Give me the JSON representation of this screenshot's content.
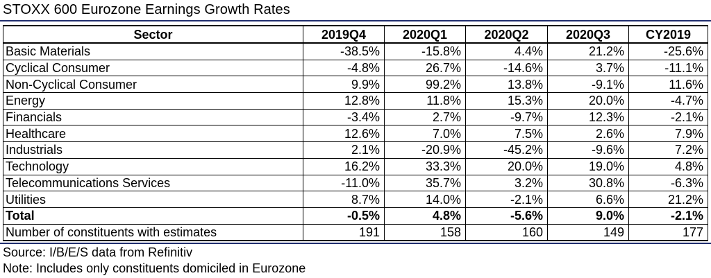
{
  "title": "STOXX 600 Eurozone Earnings Growth Rates",
  "table": {
    "headers": [
      "Sector",
      "2019Q4",
      "2020Q1",
      "2020Q2",
      "2020Q3",
      "CY2019"
    ],
    "rows": [
      {
        "sector": "Basic Materials",
        "values": [
          "-38.5%",
          "-15.8%",
          "4.4%",
          "21.2%",
          "-25.6%"
        ]
      },
      {
        "sector": "Cyclical Consumer",
        "values": [
          "-4.8%",
          "26.7%",
          "-14.6%",
          "3.7%",
          "-11.1%"
        ]
      },
      {
        "sector": "Non-Cyclical Consumer",
        "values": [
          "9.9%",
          "99.2%",
          "13.8%",
          "-9.1%",
          "11.6%"
        ]
      },
      {
        "sector": "Energy",
        "values": [
          "12.8%",
          "11.8%",
          "15.3%",
          "20.0%",
          "-4.7%"
        ]
      },
      {
        "sector": "Financials",
        "values": [
          "-3.4%",
          "2.7%",
          "-9.7%",
          "12.3%",
          "-2.1%"
        ]
      },
      {
        "sector": "Healthcare",
        "values": [
          "12.6%",
          "7.0%",
          "7.5%",
          "2.6%",
          "7.9%"
        ]
      },
      {
        "sector": "Industrials",
        "values": [
          "2.1%",
          "-20.9%",
          "-45.2%",
          "-9.6%",
          "7.2%"
        ]
      },
      {
        "sector": "Technology",
        "values": [
          "16.2%",
          "33.3%",
          "20.0%",
          "19.0%",
          "4.8%"
        ]
      },
      {
        "sector": "Telecommunications Services",
        "values": [
          "-11.0%",
          "35.7%",
          "3.2%",
          "30.8%",
          "-6.3%"
        ]
      },
      {
        "sector": "Utilities",
        "values": [
          "8.7%",
          "14.0%",
          "-2.1%",
          "6.6%",
          "21.2%"
        ]
      },
      {
        "sector": "Total",
        "values": [
          "-0.5%",
          "4.8%",
          "-5.6%",
          "9.0%",
          "-2.1%"
        ]
      },
      {
        "sector": "Number of constituents with estimates",
        "values": [
          "191",
          "158",
          "160",
          "149",
          "177"
        ]
      }
    ]
  },
  "footer": {
    "source": "Source: I/B/E/S data from Refinitiv",
    "note": "Note: Includes only constituents domiciled in Eurozone"
  },
  "colors": {
    "rule": "#1f2d6e",
    "text": "#000000",
    "background": "#ffffff"
  }
}
